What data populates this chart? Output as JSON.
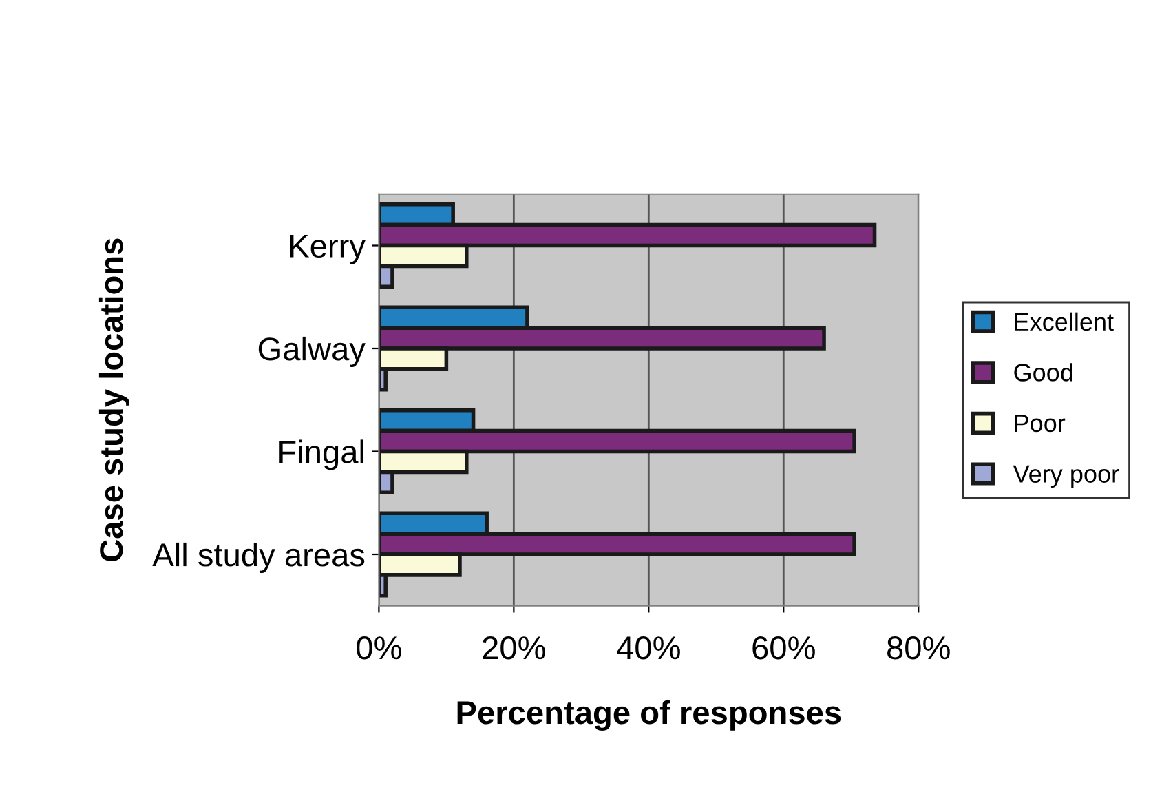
{
  "chart_data": {
    "type": "bar",
    "orientation": "horizontal",
    "xlabel": "Percentage of responses",
    "ylabel": "Case study locations",
    "categories": [
      "Kerry",
      "Galway",
      "Fingal",
      "All study areas"
    ],
    "series": [
      {
        "name": "Excellent",
        "color": "#2080c0",
        "values": [
          11,
          22,
          14,
          16
        ]
      },
      {
        "name": "Good",
        "color": "#7b2c7b",
        "values": [
          73.5,
          66,
          70.5,
          70.5
        ]
      },
      {
        "name": "Poor",
        "color": "#fafad8",
        "values": [
          13,
          10,
          13,
          12
        ]
      },
      {
        "name": "Very poor",
        "color": "#a0a8d8",
        "values": [
          2,
          1,
          2,
          1
        ]
      }
    ],
    "xlim": [
      0,
      80
    ],
    "xticks": [
      {
        "value": 0,
        "label": "0%"
      },
      {
        "value": 20,
        "label": "20%"
      },
      {
        "value": 40,
        "label": "40%"
      },
      {
        "value": 60,
        "label": "60%"
      },
      {
        "value": 80,
        "label": "80%"
      }
    ],
    "grid": "x",
    "legend": "right"
  }
}
